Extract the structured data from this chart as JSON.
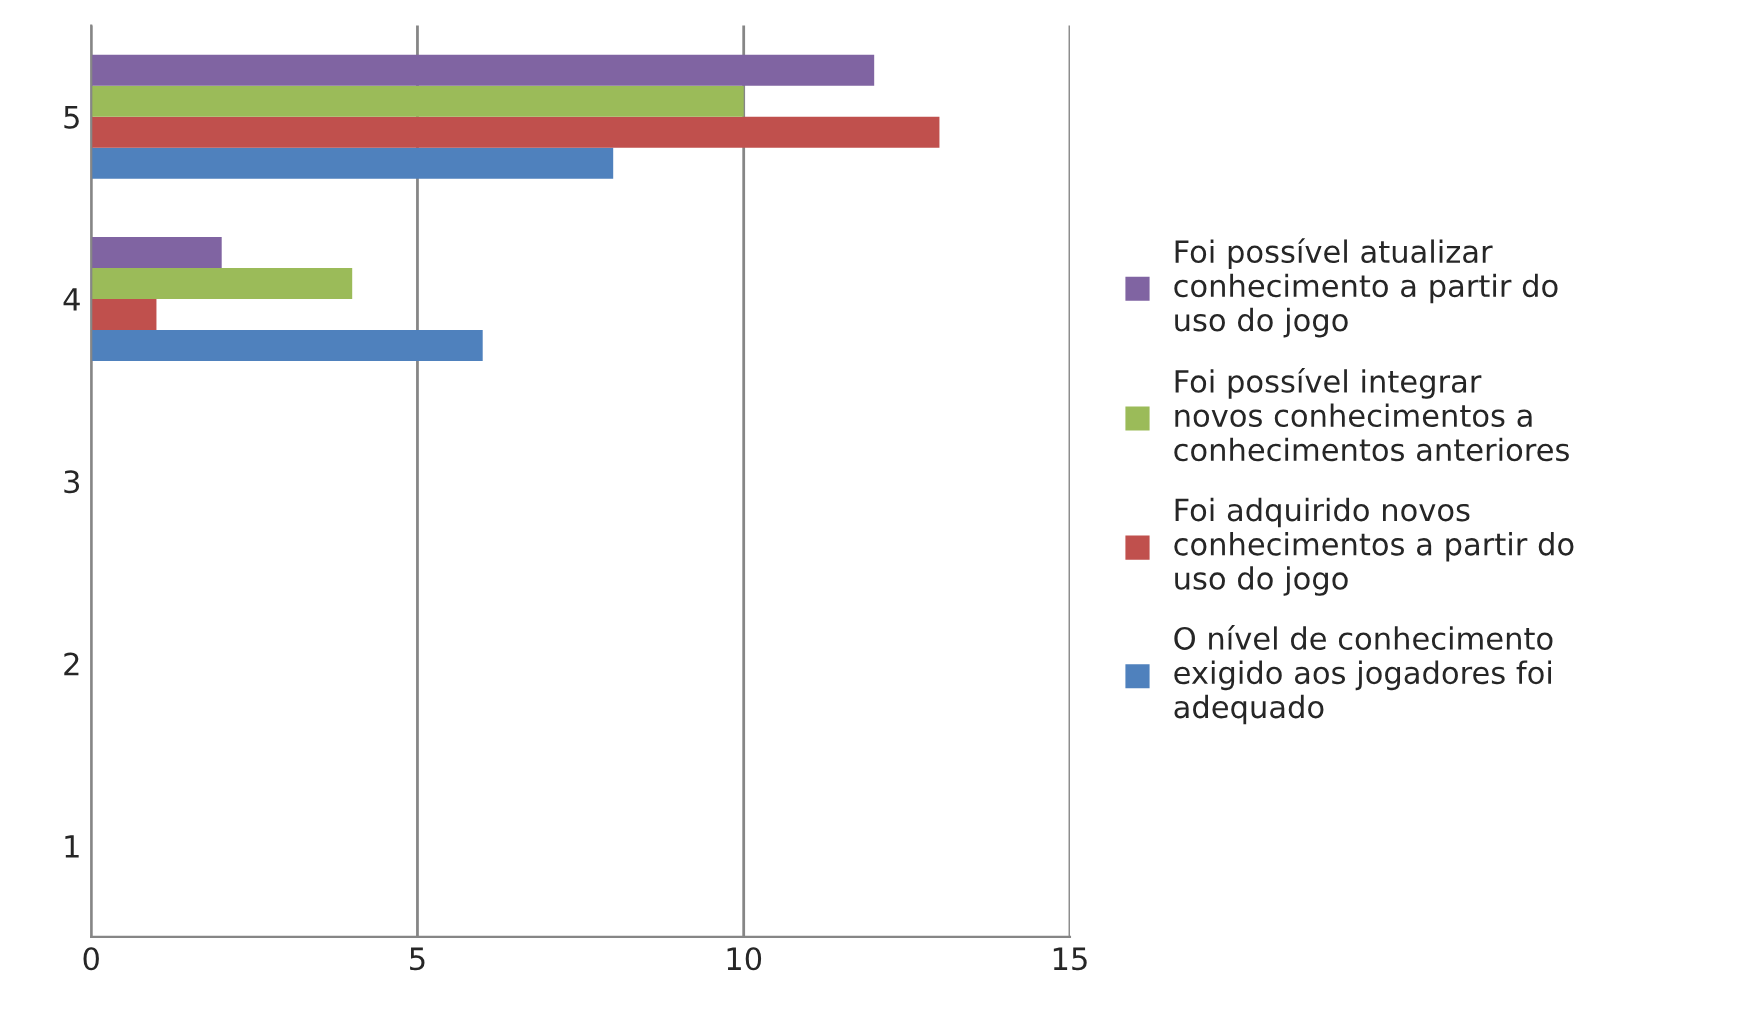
{
  "chart_data": {
    "type": "bar",
    "orientation": "horizontal",
    "categories": [
      "5",
      "4",
      "3",
      "2",
      "1"
    ],
    "series": [
      {
        "name": "O nível de conhecimento exigido aos jogadores foi adequado",
        "color": "#4f81bd",
        "values": [
          8,
          6,
          null,
          null,
          null
        ]
      },
      {
        "name": "Foi adquirido novos conhecimentos a partir do uso do jogo",
        "color": "#c0504d",
        "values": [
          13,
          1,
          null,
          null,
          null
        ]
      },
      {
        "name": "Foi possível integrar novos conhecimentos a conhecimentos anteriores",
        "color": "#9bbb59",
        "values": [
          10,
          4,
          null,
          null,
          null
        ]
      },
      {
        "name": "Foi possível atualizar conhecimento a partir do uso do jogo",
        "color": "#8064a2",
        "values": [
          12,
          2,
          null,
          null,
          null
        ]
      }
    ],
    "xlim": [
      0,
      15
    ],
    "xticks": [
      0,
      5,
      10,
      15
    ],
    "grid": "x",
    "legend": "right"
  }
}
